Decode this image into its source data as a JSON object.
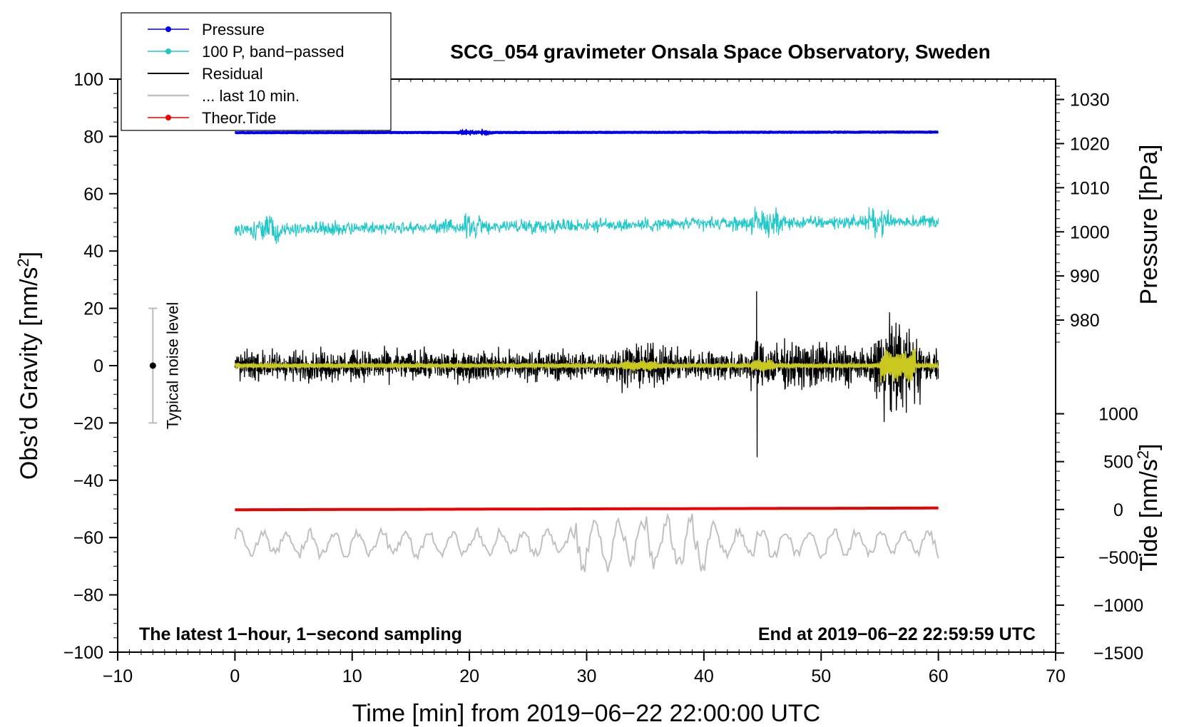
{
  "chart_data": {
    "type": "line",
    "title": "SCG_054 gravimeter Onsala Space Observatory, Sweden",
    "xlabel": "Time [min] from 2019−06−22 22:00:00 UTC",
    "ylabel_left": "Obs’d Gravity [nm/s",
    "ylabel_left_sup": "2",
    "ylabel_left_end": "]",
    "ylabel_right_pressure": "Pressure [hPa]",
    "ylabel_right_tide": "Tide [nm/s",
    "ylabel_right_tide_sup": "2",
    "ylabel_right_tide_end": "]",
    "xlim": [
      -10,
      70
    ],
    "ylim_left": [
      -100,
      100
    ],
    "x_ticks": [
      {
        "value": -10,
        "label": "−10"
      },
      {
        "value": 0,
        "label": "0"
      },
      {
        "value": 10,
        "label": "10"
      },
      {
        "value": 20,
        "label": "20"
      },
      {
        "value": 30,
        "label": "30"
      },
      {
        "value": 40,
        "label": "40"
      },
      {
        "value": 50,
        "label": "50"
      },
      {
        "value": 60,
        "label": "60"
      },
      {
        "value": 70,
        "label": "70"
      }
    ],
    "y_ticks_left": [
      {
        "value": 100,
        "label": "100"
      },
      {
        "value": 80,
        "label": "80"
      },
      {
        "value": 60,
        "label": "60"
      },
      {
        "value": 40,
        "label": "40"
      },
      {
        "value": 20,
        "label": "20"
      },
      {
        "value": 0,
        "label": "0"
      },
      {
        "value": -20,
        "label": "−20"
      },
      {
        "value": -40,
        "label": "−40"
      },
      {
        "value": -60,
        "label": "−60"
      },
      {
        "value": -80,
        "label": "−80"
      },
      {
        "value": -100,
        "label": "−100"
      }
    ],
    "pressure_axis": {
      "scale_gravity_per_hpa": 1.54,
      "ref_hpa": 1000,
      "ref_gravity": 46.7,
      "ticks": [
        {
          "value": 1030,
          "label": "1030"
        },
        {
          "value": 1020,
          "label": "1020"
        },
        {
          "value": 1010,
          "label": "1010"
        },
        {
          "value": 1000,
          "label": "1000"
        },
        {
          "value": 990,
          "label": "990"
        },
        {
          "value": 980,
          "label": "980"
        }
      ]
    },
    "tide_axis": {
      "scale_gravity_per_unit": 0.0334,
      "ref_value": 0,
      "ref_gravity": -50.2,
      "ticks": [
        {
          "value": 1000,
          "label": "1000"
        },
        {
          "value": 500,
          "label": "500"
        },
        {
          "value": 0,
          "label": "0"
        },
        {
          "value": -500,
          "label": "−500"
        },
        {
          "value": -1000,
          "label": "−1000"
        },
        {
          "value": -1500,
          "label": "−1500"
        }
      ]
    },
    "series": [
      {
        "name": "Pressure",
        "color": "#0000ee",
        "style": "dotted-line",
        "x_range": [
          0,
          60
        ],
        "start": 81.3,
        "end": 81.5,
        "amplitude": 0.3
      },
      {
        "name": "100 P, band−passed",
        "color": "#20c8c8",
        "style": "dotted-line",
        "x_range": [
          0,
          60
        ],
        "start": 47.5,
        "end": 50.5,
        "amplitude": 1.6
      },
      {
        "name": "Residual",
        "color": "#000000",
        "style": "line",
        "x_range": [
          0,
          60
        ],
        "center": 0,
        "amplitude": 3.5
      },
      {
        "name": "... last 10 min.",
        "color": "#c0c0c0",
        "style": "line",
        "x_range": [
          0,
          60
        ],
        "center": -62,
        "amplitude": 4.5
      },
      {
        "name": "Theor.Tide",
        "color": "#ee0000",
        "style": "dotted-line",
        "x_range": [
          0,
          60
        ],
        "start": -50.3,
        "end": -49.7,
        "amplitude": 0
      }
    ],
    "overlay": {
      "name": "band-passed residual",
      "color": "#c8c820"
    },
    "events": [
      {
        "time": 44.5,
        "peak": 26,
        "trough": -32
      },
      {
        "time": 56.3,
        "peak": 14,
        "trough": -16
      }
    ],
    "noise_indicator": {
      "label": "Typical noise level",
      "x": -7,
      "y_center": 0,
      "y_range": [
        -20,
        20
      ]
    },
    "annotations": {
      "left": "The latest 1−hour, 1−second sampling",
      "right": "End at 2019−06−22 22:59:59 UTC"
    },
    "legend_position": "top-left"
  }
}
